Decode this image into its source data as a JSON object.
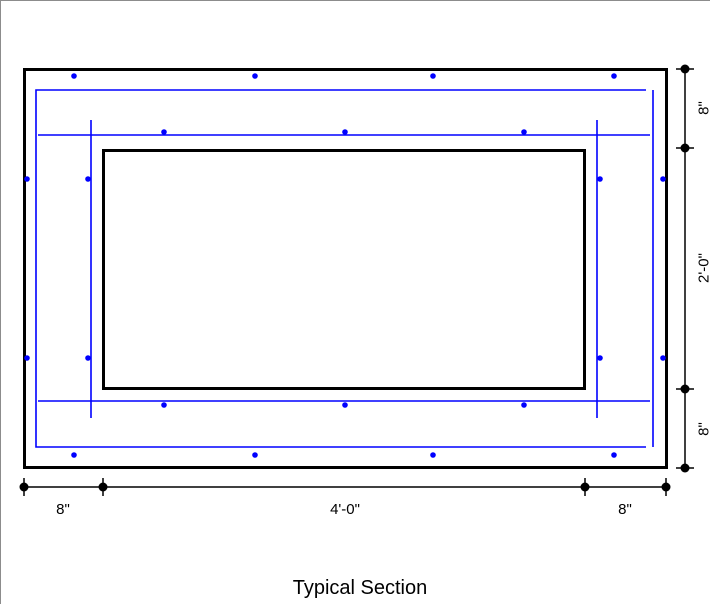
{
  "drawing": {
    "caption": "Typical Section",
    "dimensions": {
      "horizontal": [
        "8\"",
        "4'-0\"",
        "8\""
      ],
      "vertical": [
        "8\"",
        "2'-0\"",
        "8\""
      ]
    },
    "colors": {
      "concrete": "#000000",
      "rebar": "#0000ff",
      "frame": "#8c8c8c"
    }
  }
}
